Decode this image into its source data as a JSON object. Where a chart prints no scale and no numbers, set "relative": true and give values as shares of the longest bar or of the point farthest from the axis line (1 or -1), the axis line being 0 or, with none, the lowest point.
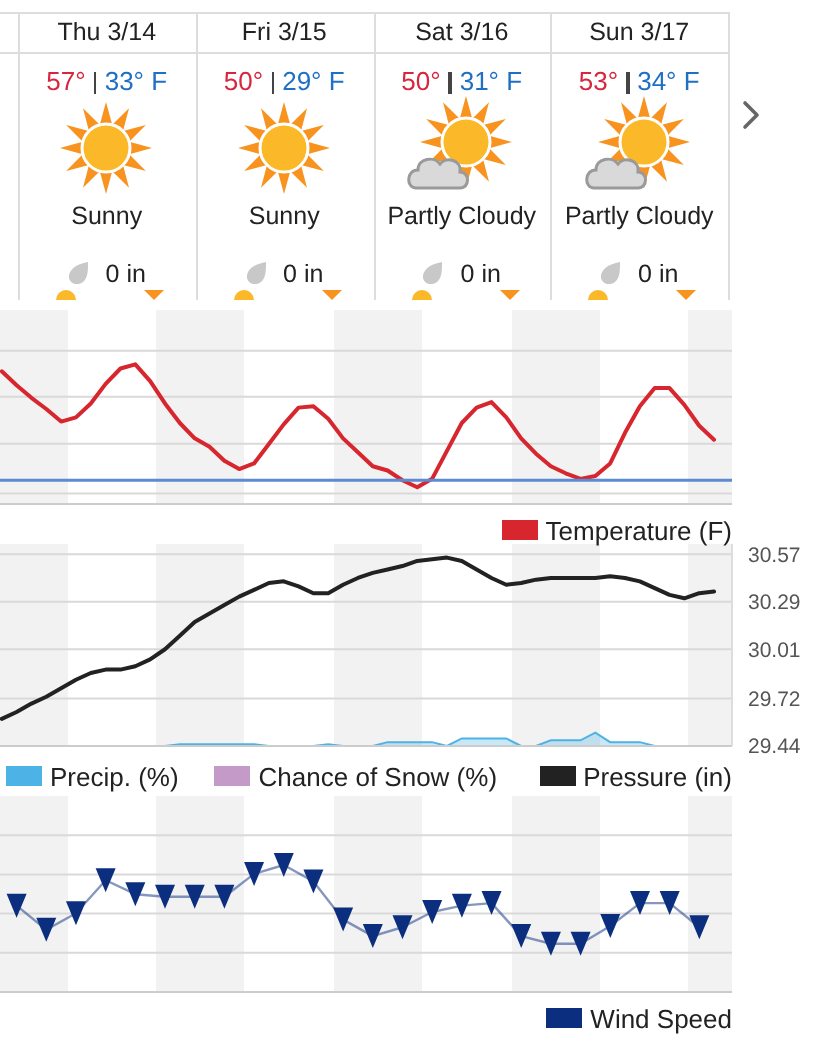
{
  "chart_data": [
    {
      "type": "other",
      "categories": [
        "Thu 3/14",
        "Fri 3/15",
        "Sat 3/16",
        "Sun 3/17"
      ],
      "annotations": [
        "57°",
        "33° F",
        "50°",
        "29° F",
        "50°",
        "31° F",
        "53°",
        "34° F",
        "Sunny",
        "Sunny",
        "Partly Cloudy",
        "Partly Cloudy",
        "0 in",
        "0 in",
        "0 in",
        "0 in"
      ]
    },
    {
      "type": "line",
      "relative": true,
      "tick_labels": false,
      "grid": "y",
      "legend": "bottom right",
      "categories": [
        null,
        null,
        null,
        null,
        null,
        null,
        null,
        null,
        null,
        null,
        null,
        null,
        null,
        null,
        null,
        null,
        null,
        null,
        null,
        null,
        null,
        null,
        null,
        null,
        null,
        null,
        null,
        null,
        null,
        null,
        null,
        null,
        null,
        null,
        null,
        null,
        null,
        null,
        null,
        null,
        null,
        null,
        null,
        null,
        null,
        null,
        null,
        null,
        null
      ],
      "ref_lines": [
        {
          "axis": "y",
          "value": 0.17,
          "color": "#5b8bd1"
        }
      ],
      "series": [
        {
          "name": "Temperature (F)",
          "color": "#d7262e",
          "values": [
            0.95,
            0.85,
            0.76,
            0.68,
            0.59,
            0.62,
            0.72,
            0.86,
            0.97,
            1.0,
            0.88,
            0.72,
            0.58,
            0.47,
            0.41,
            0.31,
            0.25,
            0.29,
            0.43,
            0.57,
            0.69,
            0.7,
            0.61,
            0.47,
            0.37,
            0.27,
            0.24,
            0.17,
            0.12,
            0.18,
            0.38,
            0.58,
            0.69,
            0.73,
            0.62,
            0.47,
            0.36,
            0.27,
            0.22,
            0.18,
            0.2,
            0.29,
            0.51,
            0.7,
            0.83,
            0.83,
            0.71,
            0.56,
            0.46
          ]
        }
      ]
    },
    {
      "type": "area",
      "relative": true,
      "tick_labels": false,
      "legend": "bottom left",
      "categories": [
        null,
        null,
        null,
        null,
        null,
        null,
        null,
        null,
        null,
        null,
        null,
        null,
        null,
        null,
        null,
        null,
        null,
        null,
        null,
        null,
        null,
        null,
        null,
        null,
        null,
        null,
        null,
        null,
        null,
        null,
        null,
        null,
        null,
        null,
        null,
        null,
        null,
        null,
        null,
        null,
        null,
        null,
        null,
        null,
        null,
        null,
        null,
        null,
        null
      ],
      "series": [
        {
          "name": "Precip. (%)",
          "color": "#4db3e6",
          "values": [
            0,
            0,
            0,
            0,
            0,
            0,
            0,
            0,
            0,
            0,
            0,
            0,
            0.14,
            0.14,
            0.14,
            0.14,
            0.14,
            0.14,
            0,
            0,
            0,
            0,
            0.14,
            0,
            0,
            0,
            0.29,
            0.29,
            0.29,
            0.29,
            0,
            0.57,
            0.57,
            0.57,
            0.57,
            0,
            0,
            0.43,
            0.43,
            0.43,
            1.0,
            0.29,
            0.29,
            0.29,
            0,
            0,
            0,
            0,
            0
          ]
        },
        {
          "name": "Chance of Snow (%)",
          "color": "#c49ac8",
          "values": [
            null,
            null,
            null,
            null,
            null,
            null,
            null,
            null,
            null,
            null,
            null,
            null,
            null,
            null,
            null,
            null,
            null,
            null,
            null,
            null,
            null,
            null,
            null,
            null,
            null,
            null,
            null,
            null,
            null,
            null,
            null,
            null,
            null,
            null,
            null,
            null,
            null,
            null,
            null,
            null,
            null,
            null,
            null,
            null,
            null,
            null,
            null,
            null,
            null
          ]
        }
      ]
    },
    {
      "type": "line",
      "tick_labels": "y",
      "grid": "y",
      "legend": "bottom right",
      "categories": [
        null,
        null,
        null,
        null,
        null,
        null,
        null,
        null,
        null,
        null,
        null,
        null,
        null,
        null,
        null,
        null,
        null,
        null,
        null,
        null,
        null,
        null,
        null,
        null,
        null,
        null,
        null,
        null,
        null,
        null,
        null,
        null,
        null,
        null,
        null,
        null,
        null,
        null,
        null,
        null,
        null,
        null,
        null,
        null,
        null,
        null,
        null,
        null,
        null
      ],
      "ylim": [
        29.44,
        30.63
      ],
      "yticks": [
        29.44,
        29.72,
        30.01,
        30.29,
        30.57
      ],
      "series": [
        {
          "name": "Pressure (in)",
          "color": "#222222",
          "values": [
            29.6,
            29.64,
            29.69,
            29.73,
            29.78,
            29.83,
            29.87,
            29.89,
            29.89,
            29.91,
            29.95,
            30.01,
            30.09,
            30.17,
            30.22,
            30.27,
            30.32,
            30.36,
            30.4,
            30.41,
            30.38,
            30.34,
            30.34,
            30.39,
            30.43,
            30.46,
            30.48,
            30.5,
            30.53,
            30.54,
            30.55,
            30.53,
            30.48,
            30.43,
            30.39,
            30.4,
            30.42,
            30.43,
            30.43,
            30.43,
            30.43,
            30.44,
            30.43,
            30.41,
            30.37,
            30.33,
            30.31,
            30.34,
            30.35
          ]
        }
      ]
    },
    {
      "type": "line",
      "relative": true,
      "marker": "triangle",
      "tick_labels": false,
      "grid": "y",
      "legend": "bottom right",
      "categories": [
        null,
        null,
        null,
        null,
        null,
        null,
        null,
        null,
        null,
        null,
        null,
        null,
        null,
        null,
        null,
        null,
        null,
        null,
        null,
        null,
        null,
        null,
        null,
        null
      ],
      "series": [
        {
          "name": "Wind Speed",
          "color": "#0b2f7e",
          "values": [
            0.68,
            0.49,
            0.62,
            0.88,
            0.77,
            0.75,
            0.75,
            0.75,
            0.93,
            1.0,
            0.87,
            0.57,
            0.44,
            0.51,
            0.63,
            0.68,
            0.7,
            0.44,
            0.38,
            0.38,
            0.52,
            0.7,
            0.7,
            0.51
          ]
        }
      ]
    }
  ]
}
